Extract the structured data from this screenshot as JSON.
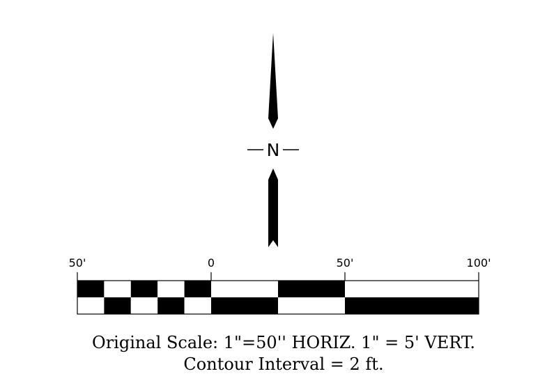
{
  "north_arrow": {
    "letter": "N"
  },
  "scale_bar": {
    "tick_labels": [
      "50'",
      "0",
      "50'",
      "100'"
    ]
  },
  "caption": {
    "line1": "Original Scale: 1\"=50'' HORIZ. 1\" = 5'  VERT.",
    "line2": "Contour Interval = 2 ft."
  },
  "colors": {
    "ink": "#000000",
    "paper": "#ffffff"
  }
}
